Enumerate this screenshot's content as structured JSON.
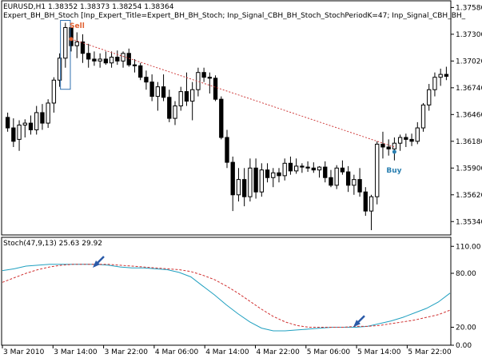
{
  "chart_data": [
    {
      "type": "candlestick",
      "header": {
        "symbol_line": "EURUSD,H1  1.38352 1.38373 1.38254 1.38364",
        "expert_line": "Expert_BH_BH_Stoch [Inp_Expert_Title=Expert_BH_BH_Stoch; Inp_Signal_CBH_BH_Stoch_StochPeriodK=47; Inp_Signal_CBH_BH_"
      },
      "ylim": [
        1.352,
        1.3765
      ],
      "yticks": [
        "1.37580",
        "1.37300",
        "1.37020",
        "1.36740",
        "1.36460",
        "1.36180",
        "1.35900",
        "1.35620",
        "1.35340"
      ],
      "ohlc": [
        [
          1.3643,
          1.3648,
          1.3628,
          1.3632
        ],
        [
          1.3632,
          1.3642,
          1.3612,
          1.3618
        ],
        [
          1.362,
          1.364,
          1.3608,
          1.3635
        ],
        [
          1.3635,
          1.3641,
          1.3622,
          1.3637
        ],
        [
          1.3637,
          1.3645,
          1.3625,
          1.363
        ],
        [
          1.363,
          1.3655,
          1.3625,
          1.3648
        ],
        [
          1.3648,
          1.3657,
          1.363,
          1.3637
        ],
        [
          1.3637,
          1.3662,
          1.3632,
          1.3658
        ],
        [
          1.3658,
          1.3685,
          1.3648,
          1.3682
        ],
        [
          1.3682,
          1.371,
          1.3675,
          1.3705
        ],
        [
          1.3705,
          1.3742,
          1.3695,
          1.3737
        ],
        [
          1.3737,
          1.3738,
          1.3712,
          1.3718
        ],
        [
          1.3718,
          1.3732,
          1.3705,
          1.3722
        ],
        [
          1.3722,
          1.373,
          1.37,
          1.371
        ],
        [
          1.371,
          1.372,
          1.3695,
          1.3704
        ],
        [
          1.3704,
          1.3712,
          1.3697,
          1.3702
        ],
        [
          1.3702,
          1.371,
          1.3695,
          1.3704
        ],
        [
          1.3704,
          1.3712,
          1.3698,
          1.37
        ],
        [
          1.37,
          1.3712,
          1.3695,
          1.3706
        ],
        [
          1.3706,
          1.3713,
          1.3698,
          1.3702
        ],
        [
          1.3702,
          1.3712,
          1.3695,
          1.371
        ],
        [
          1.371,
          1.3715,
          1.3696,
          1.3698
        ],
        [
          1.3698,
          1.3704,
          1.369,
          1.3697
        ],
        [
          1.3697,
          1.37,
          1.3682,
          1.3685
        ],
        [
          1.3685,
          1.3692,
          1.3672,
          1.368
        ],
        [
          1.368,
          1.3688,
          1.366,
          1.3665
        ],
        [
          1.3665,
          1.368,
          1.365,
          1.3675
        ],
        [
          1.3675,
          1.3688,
          1.366,
          1.3664
        ],
        [
          1.3664,
          1.3672,
          1.3638,
          1.3642
        ],
        [
          1.3642,
          1.366,
          1.3635,
          1.3655
        ],
        [
          1.3655,
          1.3675,
          1.365,
          1.367
        ],
        [
          1.367,
          1.369,
          1.3655,
          1.366
        ],
        [
          1.366,
          1.368,
          1.364,
          1.3672
        ],
        [
          1.3672,
          1.3695,
          1.3665,
          1.369
        ],
        [
          1.369,
          1.3695,
          1.368,
          1.3685
        ],
        [
          1.3685,
          1.369,
          1.3668,
          1.3684
        ],
        [
          1.3684,
          1.3687,
          1.366,
          1.3662
        ],
        [
          1.3662,
          1.3665,
          1.362,
          1.3622
        ],
        [
          1.3622,
          1.363,
          1.359,
          1.3596
        ],
        [
          1.3596,
          1.3602,
          1.3545,
          1.3562
        ],
        [
          1.3562,
          1.359,
          1.3555,
          1.3578
        ],
        [
          1.3578,
          1.359,
          1.355,
          1.356
        ],
        [
          1.356,
          1.36,
          1.3555,
          1.359
        ],
        [
          1.359,
          1.36,
          1.3558,
          1.3565
        ],
        [
          1.3565,
          1.3595,
          1.356,
          1.3588
        ],
        [
          1.3588,
          1.3595,
          1.3575,
          1.358
        ],
        [
          1.358,
          1.359,
          1.357,
          1.3585
        ],
        [
          1.3585,
          1.359,
          1.3575,
          1.3582
        ],
        [
          1.3582,
          1.36,
          1.3577,
          1.3595
        ],
        [
          1.3595,
          1.3602,
          1.3583,
          1.3587
        ],
        [
          1.3587,
          1.36,
          1.3584,
          1.3592
        ],
        [
          1.3592,
          1.3595,
          1.3585,
          1.3591
        ],
        [
          1.3591,
          1.3597,
          1.3586,
          1.359
        ],
        [
          1.359,
          1.3596,
          1.3585,
          1.3588
        ],
        [
          1.3588,
          1.3592,
          1.358,
          1.3591
        ],
        [
          1.3591,
          1.3597,
          1.3575,
          1.358
        ],
        [
          1.358,
          1.3588,
          1.357,
          1.3572
        ],
        [
          1.3572,
          1.3593,
          1.3568,
          1.359
        ],
        [
          1.359,
          1.3598,
          1.3583,
          1.3586
        ],
        [
          1.3586,
          1.3592,
          1.3565,
          1.3572
        ],
        [
          1.3572,
          1.3583,
          1.3562,
          1.3578
        ],
        [
          1.3578,
          1.359,
          1.356,
          1.3565
        ],
        [
          1.3565,
          1.357,
          1.354,
          1.3545
        ],
        [
          1.3545,
          1.3562,
          1.3525,
          1.356
        ],
        [
          1.356,
          1.3618,
          1.3552,
          1.3615
        ],
        [
          1.3615,
          1.3628,
          1.36,
          1.3612
        ],
        [
          1.3612,
          1.362,
          1.3603,
          1.361
        ],
        [
          1.361,
          1.3622,
          1.3598,
          1.3616
        ],
        [
          1.3616,
          1.3625,
          1.3608,
          1.3622
        ],
        [
          1.3622,
          1.3626,
          1.3612,
          1.362
        ],
        [
          1.362,
          1.3626,
          1.3613,
          1.3618
        ],
        [
          1.3618,
          1.3638,
          1.3615,
          1.3632
        ],
        [
          1.3632,
          1.3658,
          1.3628,
          1.3656
        ],
        [
          1.3656,
          1.3678,
          1.365,
          1.3672
        ],
        [
          1.3672,
          1.369,
          1.3665,
          1.3685
        ],
        [
          1.3685,
          1.3694,
          1.3676,
          1.3688
        ],
        [
          1.3688,
          1.3696,
          1.3682,
          1.3686
        ]
      ],
      "highlight_index": 10,
      "signals": [
        {
          "label": "Sell",
          "index": 11,
          "price": 1.3725
        },
        {
          "label": "Buy",
          "index": 67,
          "price": 1.3607
        }
      ],
      "trend_line": [
        {
          "index": 11,
          "price": 1.3725
        },
        {
          "index": 67,
          "price": 1.3612
        }
      ]
    },
    {
      "type": "line",
      "label": "Stoch(47,9,13) 25.63 29.92",
      "ylim": [
        0,
        120
      ],
      "yticks": [
        "110.00",
        "80.00",
        "20.00",
        "0.00"
      ],
      "series": [
        {
          "color": "#20a0c0",
          "values": [
            83,
            85,
            88,
            89,
            90,
            90,
            90,
            90,
            90,
            89,
            87,
            86,
            86,
            85,
            84,
            81,
            76,
            66,
            56,
            45,
            35,
            26,
            19,
            16,
            16,
            17,
            18,
            19,
            20,
            20,
            20,
            21,
            24,
            27,
            31,
            36,
            41,
            48,
            58
          ]
        },
        {
          "color": "#d03030",
          "dashed": true,
          "values": [
            70,
            75,
            80,
            84,
            87,
            89,
            90,
            90,
            90,
            90,
            89,
            88,
            87,
            86,
            85,
            84,
            82,
            78,
            73,
            66,
            58,
            49,
            40,
            32,
            26,
            22,
            20,
            20,
            20,
            20,
            21,
            21,
            22,
            24,
            26,
            28,
            31,
            34,
            39
          ]
        }
      ],
      "arrows": [
        {
          "index": 118,
          "y": 88
        },
        {
          "index": 444,
          "y": 22
        }
      ]
    }
  ],
  "x_axis": {
    "labels": [
      "3 Mar 2010",
      "3 Mar 14:00",
      "3 Mar 22:00",
      "4 Mar 06:00",
      "4 Mar 14:00",
      "4 Mar 22:00",
      "5 Mar 06:00",
      "5 Mar 14:00",
      "5 Mar 22:00"
    ]
  }
}
